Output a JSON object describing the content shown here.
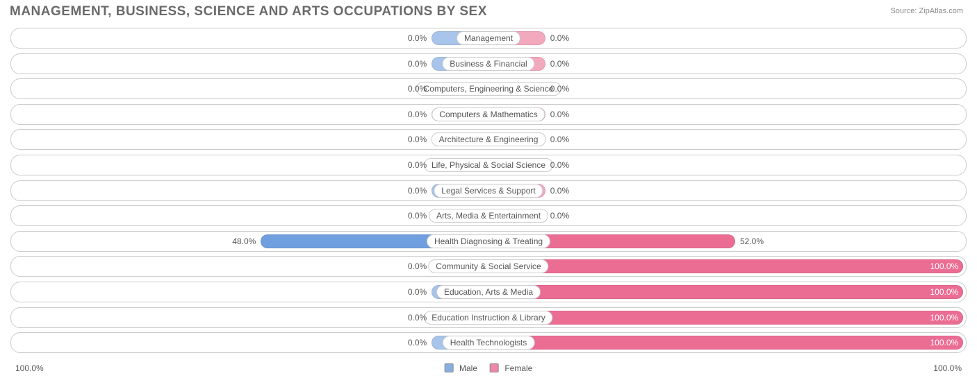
{
  "title": "MANAGEMENT, BUSINESS, SCIENCE AND ARTS OCCUPATIONS BY SEX",
  "source_label": "Source: ZipAtlas.com",
  "chart": {
    "type": "diverging-bar",
    "background_color": "#ffffff",
    "row_border_color": "#cccccc",
    "label_fontsize": 12,
    "default_bar_half_width_pct": 11,
    "min_bar_half_width_pct": 6,
    "categories": [
      {
        "label": "Management",
        "male_pct": 0.0,
        "female_pct": 0.0
      },
      {
        "label": "Business & Financial",
        "male_pct": 0.0,
        "female_pct": 0.0
      },
      {
        "label": "Computers, Engineering & Science",
        "male_pct": 0.0,
        "female_pct": 0.0
      },
      {
        "label": "Computers & Mathematics",
        "male_pct": 0.0,
        "female_pct": 0.0
      },
      {
        "label": "Architecture & Engineering",
        "male_pct": 0.0,
        "female_pct": 0.0
      },
      {
        "label": "Life, Physical & Social Science",
        "male_pct": 0.0,
        "female_pct": 0.0
      },
      {
        "label": "Legal Services & Support",
        "male_pct": 0.0,
        "female_pct": 0.0
      },
      {
        "label": "Arts, Media & Entertainment",
        "male_pct": 0.0,
        "female_pct": 0.0
      },
      {
        "label": "Health Diagnosing & Treating",
        "male_pct": 48.0,
        "female_pct": 52.0
      },
      {
        "label": "Community & Social Service",
        "male_pct": 0.0,
        "female_pct": 100.0
      },
      {
        "label": "Education, Arts & Media",
        "male_pct": 0.0,
        "female_pct": 100.0
      },
      {
        "label": "Education Instruction & Library",
        "male_pct": 0.0,
        "female_pct": 100.0
      },
      {
        "label": "Health Technologists",
        "male_pct": 0.0,
        "female_pct": 100.0
      }
    ],
    "colors": {
      "male_fill_default": "#a9c4ea",
      "male_fill_strong": "#6f9fde",
      "female_fill_default": "#f3a9bd",
      "female_fill_strong": "#ec6d93",
      "label_text": "#555555",
      "inside_text": "#ffffff"
    },
    "axis": {
      "left_label": "100.0%",
      "right_label": "100.0%"
    },
    "legend": {
      "male_label": "Male",
      "female_label": "Female",
      "male_swatch": "#88aee3",
      "female_swatch": "#ef87a6"
    }
  }
}
